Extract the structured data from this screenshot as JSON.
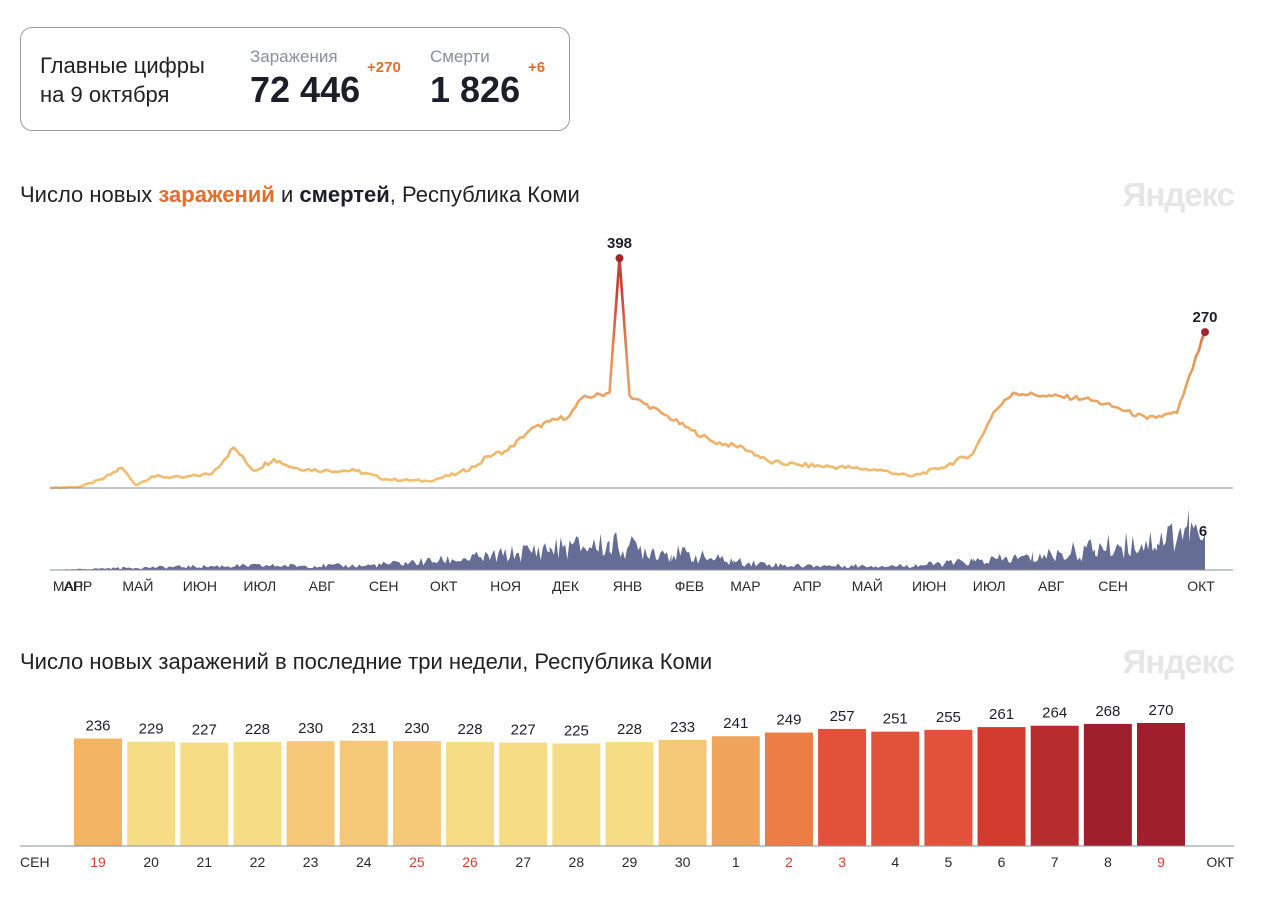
{
  "summary": {
    "title_line1": "Главные цифры",
    "title_line2": "на 9 октября",
    "cases": {
      "label": "Заражения",
      "value": "72 446",
      "delta": "+270",
      "delta_color": "#e46d2b"
    },
    "deaths": {
      "label": "Смерти",
      "value": "1 826",
      "delta": "+6",
      "delta_color": "#e46d2b"
    }
  },
  "timeline": {
    "title": {
      "prefix": "Число новых ",
      "cases_word": "заражений",
      "middle": " и ",
      "deaths_word": "смертей",
      "suffix": ", Республика Коми"
    },
    "watermark": "Яндекс",
    "months": [
      "МАР",
      "АПР",
      "МАЙ",
      "ИЮН",
      "ИЮЛ",
      "АВГ",
      "СЕН",
      "ОКТ",
      "НОЯ",
      "ДЕК",
      "ЯНВ",
      "ФЕВ",
      "МАР",
      "АПР",
      "МАЙ",
      "ИЮН",
      "ИЮЛ",
      "АВГ",
      "СЕН",
      "ОКТ"
    ],
    "peak_label": "398",
    "last_cases_label": "270",
    "last_deaths_label": "6",
    "colors": {
      "low": "#f2c170",
      "mid": "#e8955a",
      "high": "#c84033",
      "peak_dot": "#a0282a",
      "deaths_area": "#666d94",
      "axis": "#8a8f99"
    }
  },
  "chart_data": [
    {
      "type": "line",
      "title": "Число новых заражений и смертей, Республика Коми",
      "x_range": [
        "2020-03",
        "2021-10-09"
      ],
      "ylim": [
        0,
        400
      ],
      "series": [
        {
          "name": "заражений",
          "points": [
            [
              "2020-03-10",
              0
            ],
            [
              "2020-03-25",
              2
            ],
            [
              "2020-04-05",
              15
            ],
            [
              "2020-04-15",
              35
            ],
            [
              "2020-04-22",
              5
            ],
            [
              "2020-04-30",
              20
            ],
            [
              "2020-05-15",
              18
            ],
            [
              "2020-05-30",
              25
            ],
            [
              "2020-06-10",
              70
            ],
            [
              "2020-06-20",
              30
            ],
            [
              "2020-06-30",
              50
            ],
            [
              "2020-07-10",
              35
            ],
            [
              "2020-07-25",
              30
            ],
            [
              "2020-08-10",
              30
            ],
            [
              "2020-08-25",
              15
            ],
            [
              "2020-09-15",
              12
            ],
            [
              "2020-09-30",
              25
            ],
            [
              "2020-10-10",
              40
            ],
            [
              "2020-10-15",
              55
            ],
            [
              "2020-10-25",
              65
            ],
            [
              "2020-11-05",
              100
            ],
            [
              "2020-11-15",
              115
            ],
            [
              "2020-11-25",
              125
            ],
            [
              "2020-12-01",
              155
            ],
            [
              "2020-12-15",
              165
            ],
            [
              "2020-12-20",
              398
            ],
            [
              "2020-12-25",
              160
            ],
            [
              "2021-01-10",
              130
            ],
            [
              "2021-01-25",
              100
            ],
            [
              "2021-02-05",
              80
            ],
            [
              "2021-02-20",
              70
            ],
            [
              "2021-03-05",
              45
            ],
            [
              "2021-03-20",
              40
            ],
            [
              "2021-04-15",
              35
            ],
            [
              "2021-05-01",
              30
            ],
            [
              "2021-05-15",
              20
            ],
            [
              "2021-05-30",
              35
            ],
            [
              "2021-06-15",
              60
            ],
            [
              "2021-06-25",
              130
            ],
            [
              "2021-07-05",
              165
            ],
            [
              "2021-07-20",
              160
            ],
            [
              "2021-08-10",
              155
            ],
            [
              "2021-08-25",
              140
            ],
            [
              "2021-09-10",
              120
            ],
            [
              "2021-09-25",
              130
            ],
            [
              "2021-10-09",
              270
            ]
          ]
        },
        {
          "name": "смертей",
          "points": [
            [
              "2020-03-10",
              0
            ],
            [
              "2020-04-15",
              0.5
            ],
            [
              "2020-06-15",
              1
            ],
            [
              "2020-08-15",
              1
            ],
            [
              "2020-10-15",
              3
            ],
            [
              "2020-11-15",
              5
            ],
            [
              "2020-12-15",
              6
            ],
            [
              "2021-01-15",
              4
            ],
            [
              "2021-02-15",
              2
            ],
            [
              "2021-03-15",
              1
            ],
            [
              "2021-04-15",
              1
            ],
            [
              "2021-05-15",
              1
            ],
            [
              "2021-06-15",
              2
            ],
            [
              "2021-07-15",
              3
            ],
            [
              "2021-08-15",
              5
            ],
            [
              "2021-09-15",
              7
            ],
            [
              "2021-10-01",
              10
            ],
            [
              "2021-10-09",
              6
            ]
          ]
        }
      ]
    },
    {
      "type": "bar",
      "title": "Число новых заражений в последние три недели, Республика Коми",
      "categories": [
        "19",
        "20",
        "21",
        "22",
        "23",
        "24",
        "25",
        "26",
        "27",
        "28",
        "29",
        "30",
        "1",
        "2",
        "3",
        "4",
        "5",
        "6",
        "7",
        "8",
        "9"
      ],
      "values": [
        236,
        229,
        227,
        228,
        230,
        231,
        230,
        228,
        227,
        225,
        228,
        233,
        241,
        249,
        257,
        251,
        255,
        261,
        264,
        268,
        270
      ],
      "colors": [
        "#f2b462",
        "#f7dc86",
        "#f7dc86",
        "#f7dc86",
        "#f4c877",
        "#f4c877",
        "#f4c877",
        "#f7dc86",
        "#f7dc86",
        "#f7dc86",
        "#f7dc86",
        "#f4c877",
        "#f0a45b",
        "#ec7d45",
        "#e2513a",
        "#e2513a",
        "#e2513a",
        "#d23a2d",
        "#b72d2d",
        "#a01f2c",
        "#a01f2c"
      ],
      "weekend": [
        true,
        false,
        false,
        false,
        false,
        false,
        true,
        true,
        false,
        false,
        false,
        false,
        false,
        true,
        true,
        false,
        false,
        false,
        false,
        false,
        true
      ],
      "weekend_color": "#d9412d",
      "month_start": "СЕН",
      "month_end": "ОКТ",
      "watermark": "Яндекс",
      "ylim": [
        0,
        270
      ]
    }
  ]
}
